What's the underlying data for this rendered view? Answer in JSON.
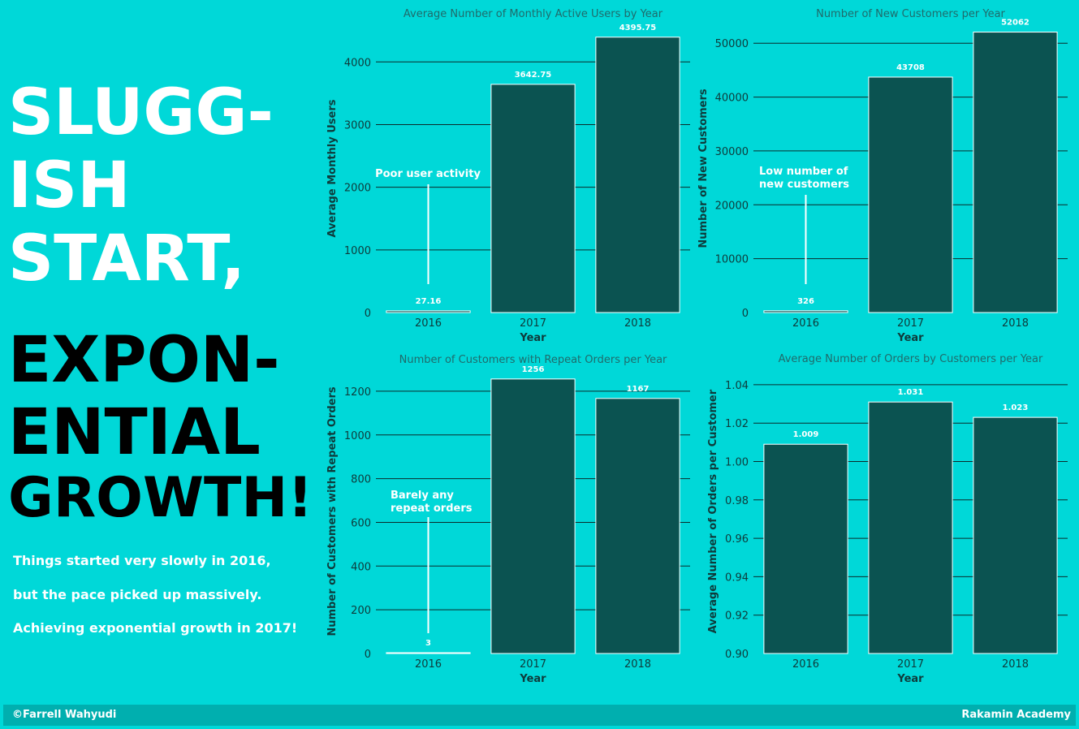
{
  "headline": {
    "line1": "SLUGG-",
    "line2": "ISH",
    "line3": "START,",
    "line4": "EXPON-",
    "line5": "ENTIAL",
    "line6": "GROWTH!"
  },
  "subtext": [
    "Things started very slowly in 2016,",
    "but the pace picked up massively.",
    "Achieving exponential growth in 2017!"
  ],
  "footer": {
    "left": "©Farrell Wahyudi",
    "right": "Rakamin Academy"
  },
  "colors": {
    "background": "#00D8D8",
    "bar": "#0B5351",
    "footer": "#00AFAF",
    "text_dark": "#0E3B3B",
    "title": "#1F6B6B"
  },
  "chart_data": [
    {
      "type": "bar",
      "title": "Average Number of Monthly Active Users by Year",
      "xlabel": "Year",
      "ylabel": "Average Monthly Users",
      "categories": [
        "2016",
        "2017",
        "2018"
      ],
      "values": [
        27.16,
        3642.75,
        4395.75
      ],
      "value_labels": [
        "27.16",
        "3642.75",
        "4395.75"
      ],
      "ylim": [
        0,
        4600
      ],
      "yticks": [
        0,
        1000,
        2000,
        3000,
        4000
      ],
      "ytick_labels": [
        "0",
        "1000",
        "2000",
        "3000",
        "4000"
      ],
      "annotation": {
        "lines": [
          "Poor user activity"
        ],
        "category": "2016"
      },
      "grid": true
    },
    {
      "type": "bar",
      "title": "Number of New Customers per Year",
      "xlabel": "Year",
      "ylabel": "Number of New Customers",
      "categories": [
        "2016",
        "2017",
        "2018"
      ],
      "values": [
        326,
        43708,
        52062
      ],
      "value_labels": [
        "326",
        "43708",
        "52062"
      ],
      "ylim": [
        0,
        53500
      ],
      "yticks": [
        0,
        10000,
        20000,
        30000,
        40000,
        50000
      ],
      "ytick_labels": [
        "0",
        "10000",
        "20000",
        "30000",
        "40000",
        "50000"
      ],
      "annotation": {
        "lines": [
          "Low number of",
          "new customers"
        ],
        "category": "2016"
      },
      "grid": true
    },
    {
      "type": "bar",
      "title": "Number of Customers with Repeat Orders per Year",
      "xlabel": "Year",
      "ylabel": "Number of Customers with Repeat Orders",
      "categories": [
        "2016",
        "2017",
        "2018"
      ],
      "values": [
        3,
        1256,
        1167
      ],
      "value_labels": [
        "3",
        "1256",
        "1167"
      ],
      "ylim": [
        0,
        1300
      ],
      "yticks": [
        0,
        200,
        400,
        600,
        800,
        1000,
        1200
      ],
      "ytick_labels": [
        "0",
        "200",
        "400",
        "600",
        "800",
        "1000",
        "1200"
      ],
      "annotation": {
        "lines": [
          "Barely any",
          "repeat orders"
        ],
        "category": "2016"
      },
      "grid": true
    },
    {
      "type": "bar",
      "title": "Average Number of Orders by Customers per Year",
      "xlabel": "Year",
      "ylabel": "Average Number of Orders per Customer",
      "categories": [
        "2016",
        "2017",
        "2018"
      ],
      "values": [
        1.009,
        1.031,
        1.023
      ],
      "value_labels": [
        "1.009",
        "1.031",
        "1.023"
      ],
      "ylim": [
        0.9,
        1.048
      ],
      "yticks": [
        0.9,
        0.92,
        0.94,
        0.96,
        0.98,
        1.0,
        1.02,
        1.04
      ],
      "ytick_labels": [
        "0.90",
        "0.92",
        "0.94",
        "0.96",
        "0.98",
        "1.00",
        "1.02",
        "1.04"
      ],
      "annotation": null,
      "grid": true
    }
  ]
}
